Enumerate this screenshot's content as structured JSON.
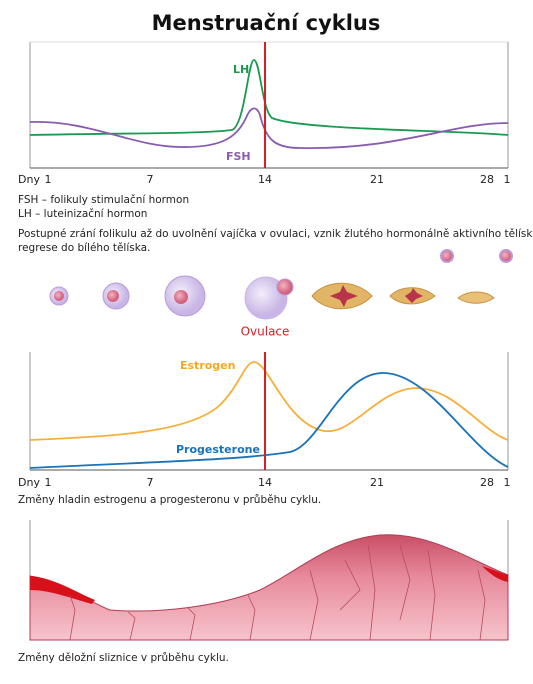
{
  "header": {
    "title": "Menstruační cyklus"
  },
  "hormone_panel": {
    "lh_label": "LH",
    "fsh_label": "FSH",
    "day_labels": [
      "Dny",
      "1",
      "7",
      "14",
      "21",
      "28",
      "1"
    ],
    "notes": [
      "FSH – folikuly stimulační hormon",
      "LH – luteinizační hormon"
    ]
  },
  "follicle_panel": {
    "description": [
      "Postupné zrání folikulu až do uvolnění vajíčka v ovulaci, vznik žlutého hormonálně aktivního tělíska,",
      "regrese do bílého tělíska."
    ],
    "ovulation_label": "Ovulace"
  },
  "ovarian_panel": {
    "estrogen_label": "Estrogen",
    "progesterone_label": "Progesterone",
    "day_labels": [
      "Dny",
      "1",
      "7",
      "14",
      "21",
      "28",
      "1"
    ],
    "caption": "Změny hladin estrogenu a progesteronu v průběhu cyklu."
  },
  "endometrium_panel": {
    "caption": "Změny děložní sliznice v průběhu cyklu."
  }
}
